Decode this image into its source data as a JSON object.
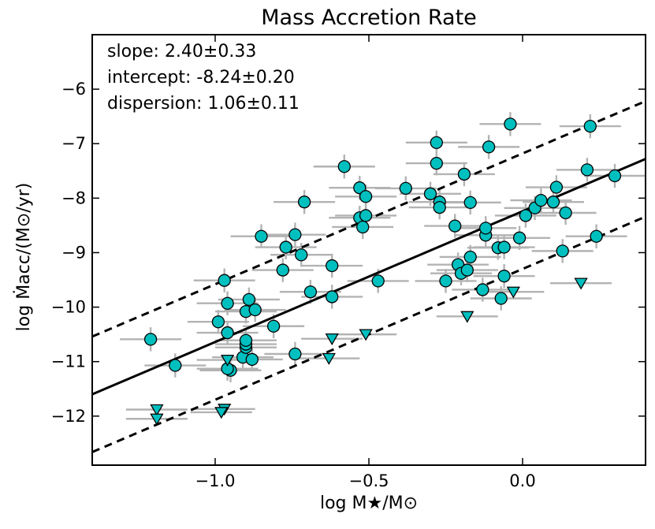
{
  "chart_data": {
    "type": "scatter",
    "title": "Mass Accretion Rate",
    "xlabel": "log M★/M⊙",
    "ylabel": "log Ṁacc/(M⊙/yr)",
    "xlim": [
      -1.4,
      0.4
    ],
    "ylim": [
      -12.9,
      -5.0
    ],
    "xticks": [
      -1.0,
      -0.5,
      0.0
    ],
    "xtick_labels": [
      "−1.0",
      "−0.5",
      "0.0"
    ],
    "yticks": [
      -12,
      -11,
      -10,
      -9,
      -8,
      -7,
      -6
    ],
    "ytick_labels": [
      "−12",
      "−11",
      "−10",
      "−9",
      "−8",
      "−7",
      "−6"
    ],
    "annotations": [
      "slope: 2.40±0.33",
      "intercept: -8.24±0.20",
      "dispersion: 1.06±0.11"
    ],
    "fit_line": {
      "slope": 2.4,
      "intercept": -8.24,
      "dispersion": 1.06
    },
    "colors": {
      "marker": "#00bfbf",
      "errorbar": "#b3b3b3",
      "line": "#000000"
    },
    "detections": [
      {
        "x": -1.21,
        "y": -10.59
      },
      {
        "x": -1.13,
        "y": -11.07
      },
      {
        "x": -0.97,
        "y": -9.51
      },
      {
        "x": -0.99,
        "y": -10.27
      },
      {
        "x": -0.96,
        "y": -9.93
      },
      {
        "x": -0.96,
        "y": -10.47
      },
      {
        "x": -0.95,
        "y": -11.16
      },
      {
        "x": -0.96,
        "y": -11.13
      },
      {
        "x": -0.91,
        "y": -10.92
      },
      {
        "x": -0.9,
        "y": -10.74
      },
      {
        "x": -0.9,
        "y": -10.68
      },
      {
        "x": -0.9,
        "y": -10.61
      },
      {
        "x": -0.9,
        "y": -10.08
      },
      {
        "x": -0.89,
        "y": -9.86
      },
      {
        "x": -0.87,
        "y": -10.05
      },
      {
        "x": -0.88,
        "y": -10.96
      },
      {
        "x": -0.85,
        "y": -8.7
      },
      {
        "x": -0.81,
        "y": -10.35
      },
      {
        "x": -0.78,
        "y": -9.32
      },
      {
        "x": -0.77,
        "y": -8.9
      },
      {
        "x": -0.74,
        "y": -8.67
      },
      {
        "x": -0.74,
        "y": -10.86
      },
      {
        "x": -0.72,
        "y": -9.04
      },
      {
        "x": -0.71,
        "y": -8.07
      },
      {
        "x": -0.69,
        "y": -9.72
      },
      {
        "x": -0.62,
        "y": -9.24
      },
      {
        "x": -0.62,
        "y": -9.81
      },
      {
        "x": -0.58,
        "y": -7.42
      },
      {
        "x": -0.53,
        "y": -7.81
      },
      {
        "x": -0.53,
        "y": -8.36
      },
      {
        "x": -0.51,
        "y": -7.97
      },
      {
        "x": -0.51,
        "y": -8.32
      },
      {
        "x": -0.52,
        "y": -8.53
      },
      {
        "x": -0.47,
        "y": -9.52
      },
      {
        "x": -0.38,
        "y": -7.82
      },
      {
        "x": -0.3,
        "y": -7.92
      },
      {
        "x": -0.28,
        "y": -6.98
      },
      {
        "x": -0.28,
        "y": -7.36
      },
      {
        "x": -0.27,
        "y": -8.07
      },
      {
        "x": -0.27,
        "y": -8.17
      },
      {
        "x": -0.25,
        "y": -9.52
      },
      {
        "x": -0.22,
        "y": -8.51
      },
      {
        "x": -0.21,
        "y": -9.22
      },
      {
        "x": -0.2,
        "y": -9.38
      },
      {
        "x": -0.19,
        "y": -7.56
      },
      {
        "x": -0.18,
        "y": -9.32
      },
      {
        "x": -0.17,
        "y": -9.08
      },
      {
        "x": -0.17,
        "y": -8.08
      },
      {
        "x": -0.13,
        "y": -9.68
      },
      {
        "x": -0.12,
        "y": -8.68
      },
      {
        "x": -0.12,
        "y": -8.55
      },
      {
        "x": -0.11,
        "y": -7.06
      },
      {
        "x": -0.08,
        "y": -8.91
      },
      {
        "x": -0.06,
        "y": -8.9
      },
      {
        "x": -0.06,
        "y": -9.43
      },
      {
        "x": -0.07,
        "y": -9.84
      },
      {
        "x": -0.04,
        "y": -6.64
      },
      {
        "x": -0.01,
        "y": -8.73
      },
      {
        "x": 0.01,
        "y": -8.32
      },
      {
        "x": 0.04,
        "y": -8.18
      },
      {
        "x": 0.06,
        "y": -8.04
      },
      {
        "x": 0.11,
        "y": -7.8
      },
      {
        "x": 0.1,
        "y": -8.07
      },
      {
        "x": 0.13,
        "y": -8.97
      },
      {
        "x": 0.14,
        "y": -8.27
      },
      {
        "x": 0.21,
        "y": -7.48
      },
      {
        "x": 0.22,
        "y": -6.68
      },
      {
        "x": 0.24,
        "y": -8.7
      },
      {
        "x": 0.3,
        "y": -7.59
      }
    ],
    "upper_limits": [
      {
        "x": -1.19,
        "y": -11.88
      },
      {
        "x": -1.19,
        "y": -12.05
      },
      {
        "x": -0.97,
        "y": -11.87
      },
      {
        "x": -0.98,
        "y": -11.93
      },
      {
        "x": -0.96,
        "y": -10.97
      },
      {
        "x": -0.63,
        "y": -10.94
      },
      {
        "x": -0.62,
        "y": -10.58
      },
      {
        "x": -0.51,
        "y": -10.5
      },
      {
        "x": -0.18,
        "y": -10.17
      },
      {
        "x": -0.03,
        "y": -9.72
      },
      {
        "x": 0.19,
        "y": -9.56
      }
    ]
  }
}
